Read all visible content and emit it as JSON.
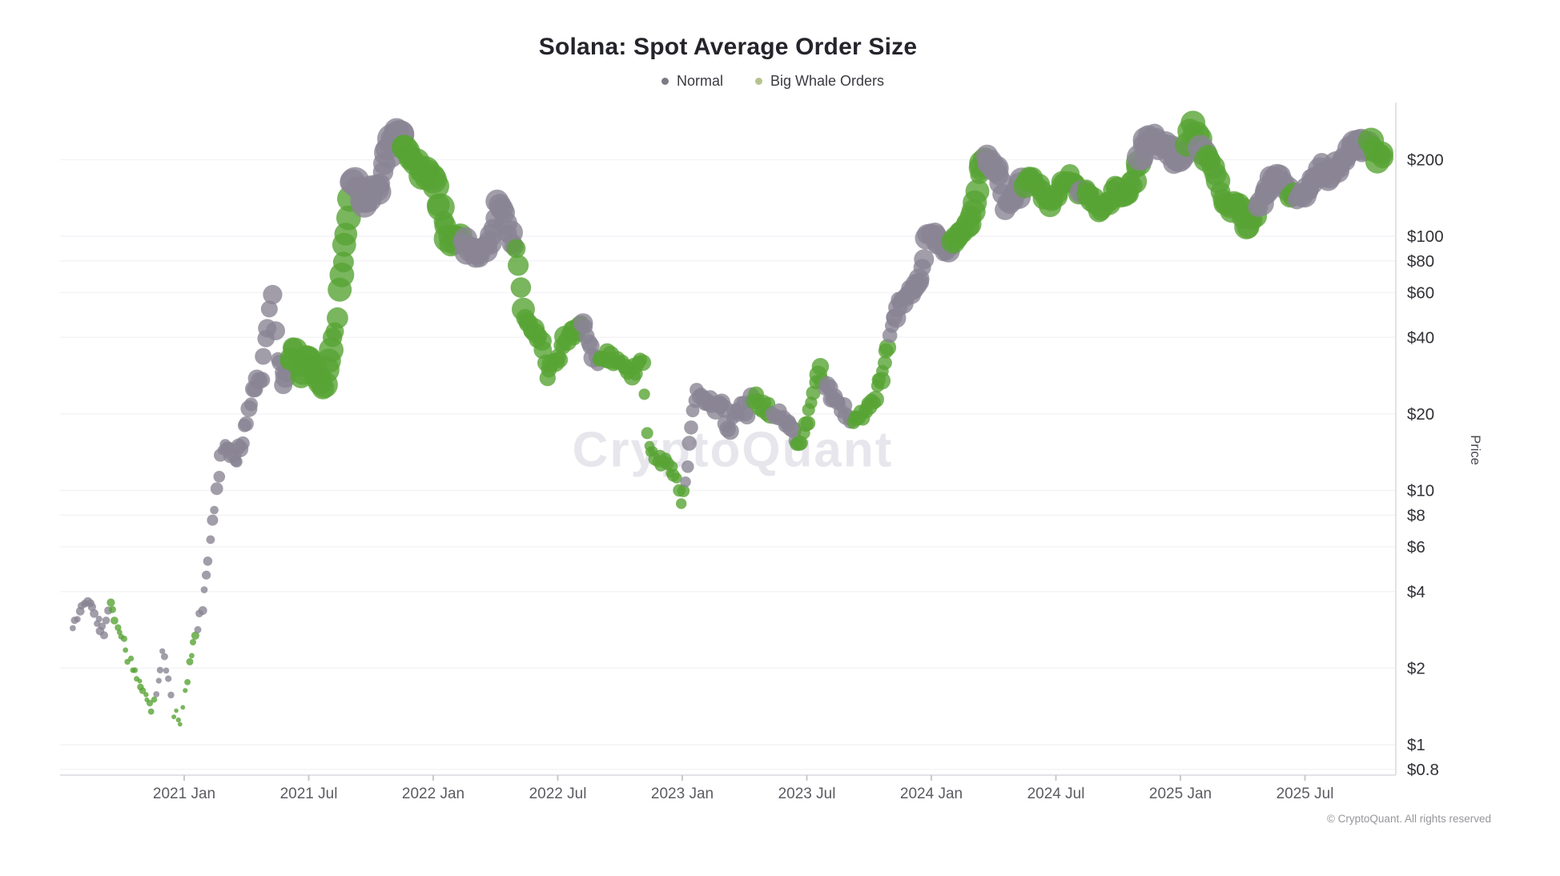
{
  "header": {
    "title": "Solana: Spot Average Order Size"
  },
  "legend": {
    "items": [
      {
        "label": "Normal",
        "dot_color": "#7d7a85"
      },
      {
        "label": "Big Whale Orders",
        "dot_color": "#b6c390"
      }
    ]
  },
  "watermark": "CryptoQuant",
  "footer": {
    "text": "© CryptoQuant. All rights reserved"
  },
  "chart_data": {
    "type": "scatter",
    "title": "Solana: Spot Average Order Size",
    "xlabel": "",
    "ylabel": "Price",
    "y_scale": "log",
    "grid": true,
    "legend_position": "top-center",
    "colors": {
      "normal": "#8a8494",
      "big_whale": "#58a434",
      "gridline": "#f3f2f5",
      "axis_line": "#e2e1e6",
      "tick_mark": "#c9c8cf",
      "x_tick_text": "#5b5b62",
      "y_tick_text": "#303036"
    },
    "series": [
      {
        "name": "Normal",
        "color": "#8a8494"
      },
      {
        "name": "Big Whale Orders",
        "color": "#58a434"
      }
    ],
    "y_ticks": [
      {
        "label": "$200",
        "value": 200
      },
      {
        "label": "$100",
        "value": 100
      },
      {
        "label": "$80",
        "value": 80
      },
      {
        "label": "$60",
        "value": 60
      },
      {
        "label": "$40",
        "value": 40
      },
      {
        "label": "$20",
        "value": 20
      },
      {
        "label": "$10",
        "value": 10
      },
      {
        "label": "$8",
        "value": 8
      },
      {
        "label": "$6",
        "value": 6
      },
      {
        "label": "$4",
        "value": 4
      },
      {
        "label": "$2",
        "value": 2
      },
      {
        "label": "$1",
        "value": 1
      },
      {
        "label": "$0.8",
        "value": 0.8
      }
    ],
    "x_ticks": [
      {
        "label": "2021 Jan",
        "t": 2021.0
      },
      {
        "label": "2021 Jul",
        "t": 2021.5
      },
      {
        "label": "2022 Jan",
        "t": 2022.0
      },
      {
        "label": "2022 Jul",
        "t": 2022.5
      },
      {
        "label": "2023 Jan",
        "t": 2023.0
      },
      {
        "label": "2023 Jul",
        "t": 2023.5
      },
      {
        "label": "2024 Jan",
        "t": 2024.0
      },
      {
        "label": "2024 Jul",
        "t": 2024.5
      },
      {
        "label": "2025 Jan",
        "t": 2025.0
      },
      {
        "label": "2025 Jul",
        "t": 2025.5
      }
    ],
    "x_range": {
      "t_min": 2020.52,
      "t_max": 2025.86
    },
    "y_range": {
      "min": 0.8,
      "max": 360
    },
    "points_encoding": "[t_decimal_year, price_usd, bubble_radius_px, series_index_0_normal_1_whale]",
    "points": [
      [
        2020.555,
        3.0,
        4.3,
        0
      ],
      [
        2020.58,
        3.2,
        4.5,
        0
      ],
      [
        2020.615,
        3.8,
        5.0,
        0
      ],
      [
        2020.65,
        3.1,
        4.6,
        0
      ],
      [
        2020.68,
        2.8,
        4.4,
        0
      ],
      [
        2020.705,
        3.5,
        4.2,
        1
      ],
      [
        2020.74,
        2.8,
        4.0,
        1
      ],
      [
        2020.775,
        2.2,
        3.8,
        1
      ],
      [
        2020.81,
        1.8,
        3.7,
        1
      ],
      [
        2020.845,
        1.5,
        3.5,
        1
      ],
      [
        2020.868,
        1.42,
        3.5,
        1
      ],
      [
        2020.888,
        1.62,
        3.6,
        0
      ],
      [
        2020.912,
        2.3,
        4.0,
        0
      ],
      [
        2020.938,
        1.78,
        3.6,
        0
      ],
      [
        2020.958,
        1.35,
        3.4,
        1
      ],
      [
        2020.985,
        1.2,
        3.4,
        1
      ],
      [
        2021.005,
        1.6,
        3.6,
        1
      ],
      [
        2021.03,
        2.3,
        4.0,
        1
      ],
      [
        2021.055,
        2.9,
        4.4,
        0
      ],
      [
        2021.08,
        3.9,
        4.8,
        0
      ],
      [
        2021.105,
        6.5,
        5.4,
        0
      ],
      [
        2021.13,
        10.0,
        6.5,
        0
      ],
      [
        2021.155,
        15.0,
        7.5,
        0
      ],
      [
        2021.18,
        14.0,
        8.0,
        0
      ],
      [
        2021.205,
        13.0,
        8.2,
        0
      ],
      [
        2021.235,
        15.5,
        8.6,
        0
      ],
      [
        2021.26,
        21.0,
        9.0,
        0
      ],
      [
        2021.285,
        26.0,
        9.5,
        0
      ],
      [
        2021.31,
        28.0,
        10.0,
        0
      ],
      [
        2021.335,
        44.0,
        10.5,
        0
      ],
      [
        2021.355,
        56.0,
        11.0,
        0
      ],
      [
        2021.375,
        34.0,
        10.5,
        0
      ],
      [
        2021.398,
        25.0,
        10.5,
        0
      ],
      [
        2021.42,
        33.0,
        12.0,
        1
      ],
      [
        2021.448,
        37.0,
        13.5,
        1
      ],
      [
        2021.47,
        28.0,
        13.5,
        1
      ],
      [
        2021.498,
        34.0,
        14.0,
        1
      ],
      [
        2021.528,
        30.0,
        14.0,
        1
      ],
      [
        2021.555,
        24.0,
        13.5,
        1
      ],
      [
        2021.58,
        34.0,
        14.0,
        1
      ],
      [
        2021.605,
        42.0,
        14.0,
        1
      ],
      [
        2021.63,
        70.0,
        14.5,
        1
      ],
      [
        2021.652,
        105.0,
        15.0,
        1
      ],
      [
        2021.675,
        170.0,
        15.0,
        0
      ],
      [
        2021.7,
        158.0,
        15.0,
        0
      ],
      [
        2021.725,
        132.0,
        15.0,
        0
      ],
      [
        2021.75,
        152.0,
        15.0,
        0
      ],
      [
        2021.778,
        148.0,
        15.0,
        0
      ],
      [
        2021.805,
        195.0,
        15.5,
        0
      ],
      [
        2021.832,
        240.0,
        16.0,
        0
      ],
      [
        2021.855,
        258.0,
        16.5,
        0
      ],
      [
        2021.878,
        232.0,
        16.0,
        1
      ],
      [
        2021.902,
        212.0,
        15.5,
        1
      ],
      [
        2021.93,
        192.0,
        15.0,
        1
      ],
      [
        2021.958,
        172.0,
        15.0,
        1
      ],
      [
        2021.985,
        178.0,
        15.0,
        1
      ],
      [
        2022.012,
        155.0,
        15.0,
        1
      ],
      [
        2022.04,
        112.0,
        14.5,
        1
      ],
      [
        2022.065,
        95.0,
        14.0,
        1
      ],
      [
        2022.09,
        101.0,
        14.0,
        1
      ],
      [
        2022.115,
        97.0,
        13.0,
        0
      ],
      [
        2022.145,
        89.0,
        13.0,
        0
      ],
      [
        2022.175,
        86.0,
        13.0,
        0
      ],
      [
        2022.205,
        88.0,
        13.0,
        0
      ],
      [
        2022.235,
        100.0,
        13.0,
        0
      ],
      [
        2022.26,
        133.0,
        13.5,
        0
      ],
      [
        2022.285,
        118.0,
        13.0,
        0
      ],
      [
        2022.31,
        101.0,
        13.0,
        0
      ],
      [
        2022.335,
        89.0,
        12.5,
        1
      ],
      [
        2022.36,
        50.0,
        12.0,
        1
      ],
      [
        2022.385,
        47.0,
        12.0,
        1
      ],
      [
        2022.41,
        40.0,
        11.5,
        1
      ],
      [
        2022.435,
        39.0,
        11.5,
        1
      ],
      [
        2022.458,
        28.0,
        11.0,
        1
      ],
      [
        2022.48,
        32.0,
        11.0,
        1
      ],
      [
        2022.505,
        34.0,
        11.0,
        1
      ],
      [
        2022.53,
        39.0,
        11.0,
        1
      ],
      [
        2022.555,
        41.0,
        11.0,
        1
      ],
      [
        2022.578,
        43.0,
        11.0,
        1
      ],
      [
        2022.6,
        44.0,
        10.5,
        0
      ],
      [
        2022.625,
        39.0,
        10.0,
        0
      ],
      [
        2022.645,
        34.0,
        10.0,
        0
      ],
      [
        2022.668,
        31.5,
        9.5,
        1
      ],
      [
        2022.698,
        33.5,
        9.5,
        1
      ],
      [
        2022.73,
        32.5,
        9.5,
        1
      ],
      [
        2022.765,
        30.5,
        9.0,
        1
      ],
      [
        2022.8,
        29.0,
        9.0,
        1
      ],
      [
        2022.822,
        31.0,
        9.0,
        1
      ],
      [
        2022.84,
        33.0,
        8.5,
        1
      ],
      [
        2022.857,
        17.0,
        7.5,
        1
      ],
      [
        2022.875,
        14.0,
        7.0,
        1
      ],
      [
        2022.9,
        13.5,
        7.0,
        1
      ],
      [
        2022.925,
        13.0,
        7.0,
        1
      ],
      [
        2022.95,
        12.2,
        6.8,
        1
      ],
      [
        2022.975,
        11.0,
        6.5,
        1
      ],
      [
        2022.995,
        9.2,
        6.5,
        1
      ],
      [
        2023.012,
        10.5,
        7.5,
        0
      ],
      [
        2023.035,
        18.0,
        8.5,
        0
      ],
      [
        2023.06,
        24.0,
        9.5,
        0
      ],
      [
        2023.085,
        23.5,
        9.5,
        0
      ],
      [
        2023.11,
        22.0,
        9.5,
        0
      ],
      [
        2023.135,
        21.0,
        9.5,
        0
      ],
      [
        2023.16,
        22.5,
        9.5,
        0
      ],
      [
        2023.185,
        17.0,
        9.0,
        0
      ],
      [
        2023.21,
        19.5,
        9.0,
        0
      ],
      [
        2023.235,
        21.5,
        9.5,
        0
      ],
      [
        2023.26,
        20.5,
        9.5,
        0
      ],
      [
        2023.285,
        23.5,
        9.5,
        1
      ],
      [
        2023.31,
        21.5,
        9.5,
        1
      ],
      [
        2023.335,
        21.0,
        9.5,
        1
      ],
      [
        2023.36,
        20.5,
        9.0,
        0
      ],
      [
        2023.39,
        19.5,
        9.0,
        0
      ],
      [
        2023.42,
        18.5,
        9.0,
        0
      ],
      [
        2023.445,
        17.5,
        9.0,
        0
      ],
      [
        2023.462,
        14.8,
        8.5,
        1
      ],
      [
        2023.485,
        16.5,
        8.5,
        1
      ],
      [
        2023.51,
        20.5,
        9.0,
        1
      ],
      [
        2023.535,
        27.5,
        9.5,
        1
      ],
      [
        2023.552,
        29.5,
        9.5,
        1
      ],
      [
        2023.572,
        25.5,
        9.0,
        0
      ],
      [
        2023.6,
        24.0,
        9.0,
        0
      ],
      [
        2023.63,
        21.5,
        9.0,
        0
      ],
      [
        2023.658,
        20.5,
        9.0,
        0
      ],
      [
        2023.685,
        18.5,
        8.5,
        1
      ],
      [
        2023.715,
        19.5,
        8.5,
        1
      ],
      [
        2023.745,
        21.0,
        8.5,
        1
      ],
      [
        2023.775,
        23.5,
        9.0,
        1
      ],
      [
        2023.805,
        30.0,
        9.5,
        1
      ],
      [
        2023.835,
        40.0,
        10.5,
        0
      ],
      [
        2023.865,
        54.0,
        11.0,
        0
      ],
      [
        2023.895,
        58.0,
        11.0,
        0
      ],
      [
        2023.925,
        61.0,
        11.5,
        0
      ],
      [
        2023.955,
        68.0,
        11.5,
        0
      ],
      [
        2023.985,
        105.0,
        12.0,
        0
      ],
      [
        2024.012,
        99.0,
        12.5,
        0
      ],
      [
        2024.035,
        92.0,
        12.5,
        0
      ],
      [
        2024.06,
        86.0,
        12.5,
        0
      ],
      [
        2024.085,
        96.0,
        13.0,
        1
      ],
      [
        2024.115,
        105.0,
        13.0,
        1
      ],
      [
        2024.145,
        109.0,
        13.0,
        1
      ],
      [
        2024.175,
        138.0,
        13.5,
        1
      ],
      [
        2024.2,
        185.0,
        14.0,
        1
      ],
      [
        2024.222,
        198.0,
        14.0,
        0
      ],
      [
        2024.245,
        186.0,
        14.0,
        0
      ],
      [
        2024.27,
        172.0,
        13.5,
        0
      ],
      [
        2024.295,
        130.0,
        13.0,
        0
      ],
      [
        2024.325,
        138.0,
        13.0,
        0
      ],
      [
        2024.35,
        148.0,
        13.0,
        0
      ],
      [
        2024.375,
        164.0,
        13.5,
        1
      ],
      [
        2024.4,
        168.0,
        13.5,
        1
      ],
      [
        2024.425,
        156.0,
        13.0,
        1
      ],
      [
        2024.45,
        146.0,
        13.0,
        1
      ],
      [
        2024.475,
        131.0,
        13.0,
        1
      ],
      [
        2024.5,
        142.0,
        13.0,
        1
      ],
      [
        2024.525,
        155.0,
        13.0,
        1
      ],
      [
        2024.55,
        172.0,
        13.5,
        1
      ],
      [
        2024.575,
        158.0,
        13.0,
        1
      ],
      [
        2024.598,
        148.0,
        13.0,
        0
      ],
      [
        2024.62,
        150.0,
        13.0,
        1
      ],
      [
        2024.645,
        140.0,
        13.0,
        1
      ],
      [
        2024.668,
        128.0,
        12.5,
        1
      ],
      [
        2024.69,
        131.0,
        12.5,
        1
      ],
      [
        2024.715,
        138.0,
        13.0,
        1
      ],
      [
        2024.74,
        150.0,
        13.0,
        1
      ],
      [
        2024.765,
        141.0,
        13.0,
        1
      ],
      [
        2024.79,
        152.0,
        13.0,
        1
      ],
      [
        2024.815,
        172.0,
        13.5,
        1
      ],
      [
        2024.84,
        198.0,
        14.0,
        0
      ],
      [
        2024.865,
        232.0,
        14.0,
        0
      ],
      [
        2024.888,
        250.0,
        14.0,
        0
      ],
      [
        2024.912,
        228.0,
        14.0,
        0
      ],
      [
        2024.935,
        232.0,
        14.0,
        0
      ],
      [
        2024.96,
        220.0,
        14.0,
        0
      ],
      [
        2024.985,
        196.0,
        13.5,
        0
      ],
      [
        2025.005,
        208.0,
        13.5,
        0
      ],
      [
        2025.028,
        228.0,
        14.0,
        1
      ],
      [
        2025.048,
        272.0,
        14.0,
        1
      ],
      [
        2025.062,
        250.0,
        14.0,
        1
      ],
      [
        2025.082,
        228.0,
        13.5,
        0
      ],
      [
        2025.1,
        208.0,
        13.5,
        1
      ],
      [
        2025.125,
        192.0,
        13.5,
        1
      ],
      [
        2025.15,
        158.0,
        13.0,
        1
      ],
      [
        2025.175,
        136.0,
        13.0,
        1
      ],
      [
        2025.2,
        128.0,
        13.0,
        1
      ],
      [
        2025.225,
        134.0,
        13.0,
        1
      ],
      [
        2025.25,
        124.0,
        13.0,
        1
      ],
      [
        2025.272,
        107.0,
        12.5,
        1
      ],
      [
        2025.29,
        118.0,
        12.5,
        1
      ],
      [
        2025.315,
        136.0,
        13.0,
        0
      ],
      [
        2025.34,
        149.0,
        13.0,
        0
      ],
      [
        2025.365,
        167.0,
        13.0,
        0
      ],
      [
        2025.39,
        176.0,
        13.5,
        0
      ],
      [
        2025.415,
        158.0,
        13.0,
        0
      ],
      [
        2025.44,
        146.0,
        13.0,
        1
      ],
      [
        2025.465,
        139.0,
        13.0,
        0
      ],
      [
        2025.49,
        147.0,
        13.0,
        0
      ],
      [
        2025.515,
        156.0,
        13.0,
        0
      ],
      [
        2025.54,
        172.0,
        13.0,
        0
      ],
      [
        2025.565,
        186.0,
        13.5,
        0
      ],
      [
        2025.59,
        170.0,
        13.0,
        0
      ],
      [
        2025.615,
        180.0,
        13.5,
        0
      ],
      [
        2025.64,
        194.0,
        13.5,
        0
      ],
      [
        2025.665,
        203.0,
        13.5,
        0
      ],
      [
        2025.69,
        218.0,
        14.0,
        0
      ],
      [
        2025.715,
        234.0,
        14.0,
        0
      ],
      [
        2025.74,
        218.0,
        14.0,
        0
      ],
      [
        2025.765,
        226.0,
        14.0,
        1
      ],
      [
        2025.79,
        200.0,
        13.5,
        1
      ],
      [
        2025.815,
        204.0,
        13.5,
        1
      ]
    ]
  }
}
